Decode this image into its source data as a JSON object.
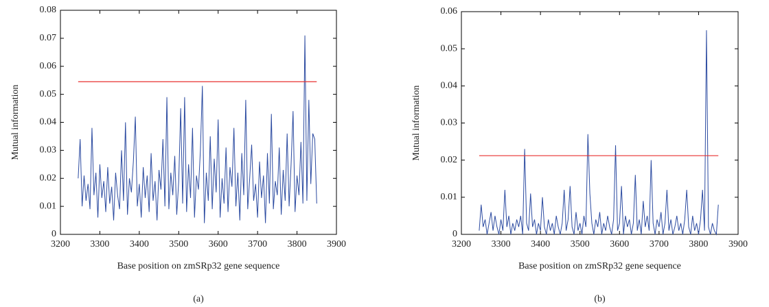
{
  "chart_data": [
    {
      "type": "line",
      "caption": "(a)",
      "xlabel": "Base position on zmSRp32 gene sequence",
      "ylabel": "Mutual information",
      "color": "#2b4aa0",
      "x": [
        3245,
        3250,
        3255,
        3260,
        3265,
        3270,
        3275,
        3280,
        3285,
        3290,
        3295,
        3300,
        3305,
        3310,
        3315,
        3320,
        3325,
        3330,
        3335,
        3340,
        3345,
        3350,
        3355,
        3360,
        3365,
        3370,
        3375,
        3380,
        3385,
        3390,
        3395,
        3400,
        3405,
        3410,
        3415,
        3420,
        3425,
        3430,
        3435,
        3440,
        3445,
        3450,
        3455,
        3460,
        3465,
        3470,
        3475,
        3480,
        3485,
        3490,
        3495,
        3500,
        3505,
        3510,
        3515,
        3520,
        3525,
        3530,
        3535,
        3540,
        3545,
        3550,
        3555,
        3560,
        3565,
        3570,
        3575,
        3580,
        3585,
        3590,
        3595,
        3600,
        3605,
        3610,
        3615,
        3620,
        3625,
        3630,
        3635,
        3640,
        3645,
        3650,
        3655,
        3660,
        3665,
        3670,
        3675,
        3680,
        3685,
        3690,
        3695,
        3700,
        3705,
        3710,
        3715,
        3720,
        3725,
        3730,
        3735,
        3740,
        3745,
        3750,
        3755,
        3760,
        3765,
        3770,
        3775,
        3780,
        3785,
        3790,
        3795,
        3800,
        3805,
        3810,
        3815,
        3820,
        3825,
        3830,
        3835,
        3840,
        3845,
        3850
      ],
      "values": [
        0.02,
        0.034,
        0.01,
        0.021,
        0.012,
        0.018,
        0.009,
        0.038,
        0.014,
        0.022,
        0.006,
        0.025,
        0.013,
        0.019,
        0.008,
        0.024,
        0.011,
        0.017,
        0.005,
        0.022,
        0.014,
        0.009,
        0.03,
        0.012,
        0.04,
        0.007,
        0.02,
        0.015,
        0.026,
        0.042,
        0.01,
        0.018,
        0.006,
        0.024,
        0.013,
        0.021,
        0.008,
        0.029,
        0.012,
        0.019,
        0.005,
        0.023,
        0.016,
        0.034,
        0.01,
        0.049,
        0.009,
        0.022,
        0.014,
        0.028,
        0.007,
        0.019,
        0.045,
        0.011,
        0.049,
        0.008,
        0.025,
        0.013,
        0.038,
        0.006,
        0.021,
        0.016,
        0.03,
        0.053,
        0.004,
        0.022,
        0.012,
        0.035,
        0.009,
        0.027,
        0.015,
        0.041,
        0.006,
        0.02,
        0.011,
        0.031,
        0.008,
        0.024,
        0.017,
        0.038,
        0.01,
        0.022,
        0.005,
        0.029,
        0.014,
        0.048,
        0.009,
        0.02,
        0.032,
        0.012,
        0.018,
        0.006,
        0.026,
        0.013,
        0.021,
        0.004,
        0.029,
        0.011,
        0.043,
        0.009,
        0.019,
        0.014,
        0.031,
        0.007,
        0.023,
        0.012,
        0.036,
        0.01,
        0.025,
        0.044,
        0.008,
        0.021,
        0.014,
        0.033,
        0.011,
        0.071,
        0.012,
        0.048,
        0.018,
        0.036,
        0.034,
        0.011
      ],
      "reference_line": {
        "y": 0.0545,
        "color": "#e8312f"
      },
      "xlim": [
        3200,
        3900
      ],
      "xticks": [
        3200,
        3300,
        3400,
        3500,
        3600,
        3700,
        3800,
        3900
      ],
      "ylim": [
        0,
        0.08
      ],
      "yticks": [
        0,
        0.01,
        0.02,
        0.03,
        0.04,
        0.05,
        0.06,
        0.07,
        0.08
      ]
    },
    {
      "type": "line",
      "caption": "(b)",
      "xlabel": "Base position on zmSRp32 gene sequence",
      "ylabel": "Mutual information",
      "color": "#2b4aa0",
      "x": [
        3245,
        3250,
        3255,
        3260,
        3265,
        3270,
        3275,
        3280,
        3285,
        3290,
        3295,
        3300,
        3305,
        3310,
        3315,
        3320,
        3325,
        3330,
        3335,
        3340,
        3345,
        3350,
        3355,
        3360,
        3365,
        3370,
        3375,
        3380,
        3385,
        3390,
        3395,
        3400,
        3405,
        3410,
        3415,
        3420,
        3425,
        3430,
        3435,
        3440,
        3445,
        3450,
        3455,
        3460,
        3465,
        3470,
        3475,
        3480,
        3485,
        3490,
        3495,
        3500,
        3505,
        3510,
        3515,
        3520,
        3525,
        3530,
        3535,
        3540,
        3545,
        3550,
        3555,
        3560,
        3565,
        3570,
        3575,
        3580,
        3585,
        3590,
        3595,
        3600,
        3605,
        3610,
        3615,
        3620,
        3625,
        3630,
        3635,
        3640,
        3645,
        3650,
        3655,
        3660,
        3665,
        3670,
        3675,
        3680,
        3685,
        3690,
        3695,
        3700,
        3705,
        3710,
        3715,
        3720,
        3725,
        3730,
        3735,
        3740,
        3745,
        3750,
        3755,
        3760,
        3765,
        3770,
        3775,
        3780,
        3785,
        3790,
        3795,
        3800,
        3805,
        3810,
        3815,
        3820,
        3825,
        3830,
        3835,
        3840,
        3845,
        3850
      ],
      "values": [
        0.001,
        0.008,
        0.002,
        0.004,
        0.0,
        0.003,
        0.006,
        0.001,
        0.005,
        0.002,
        0.0,
        0.004,
        0.001,
        0.012,
        0.002,
        0.005,
        0.0,
        0.003,
        0.001,
        0.004,
        0.002,
        0.005,
        0.0,
        0.023,
        0.003,
        0.001,
        0.011,
        0.002,
        0.004,
        0.0,
        0.003,
        0.001,
        0.01,
        0.002,
        0.0,
        0.004,
        0.001,
        0.003,
        0.0,
        0.005,
        0.002,
        0.0,
        0.003,
        0.012,
        0.001,
        0.004,
        0.013,
        0.002,
        0.0,
        0.006,
        0.001,
        0.003,
        0.0,
        0.005,
        0.002,
        0.027,
        0.011,
        0.003,
        0.0,
        0.004,
        0.002,
        0.006,
        0.0,
        0.003,
        0.001,
        0.005,
        0.002,
        0.0,
        0.004,
        0.024,
        0.001,
        0.003,
        0.013,
        0.0,
        0.005,
        0.002,
        0.004,
        0.0,
        0.003,
        0.016,
        0.001,
        0.004,
        0.0,
        0.009,
        0.002,
        0.005,
        0.001,
        0.02,
        0.003,
        0.0,
        0.004,
        0.002,
        0.006,
        0.0,
        0.003,
        0.012,
        0.001,
        0.004,
        0.0,
        0.002,
        0.005,
        0.001,
        0.003,
        0.0,
        0.004,
        0.012,
        0.002,
        0.0,
        0.005,
        0.001,
        0.003,
        0.0,
        0.004,
        0.012,
        0.001,
        0.055,
        0.002,
        0.0,
        0.003,
        0.001,
        0.0,
        0.008
      ],
      "reference_line": {
        "y": 0.0212,
        "color": "#e8312f"
      },
      "xlim": [
        3200,
        3900
      ],
      "xticks": [
        3200,
        3300,
        3400,
        3500,
        3600,
        3700,
        3800,
        3900
      ],
      "ylim": [
        0,
        0.06
      ],
      "yticks": [
        0,
        0.01,
        0.02,
        0.03,
        0.04,
        0.05,
        0.06
      ]
    }
  ]
}
